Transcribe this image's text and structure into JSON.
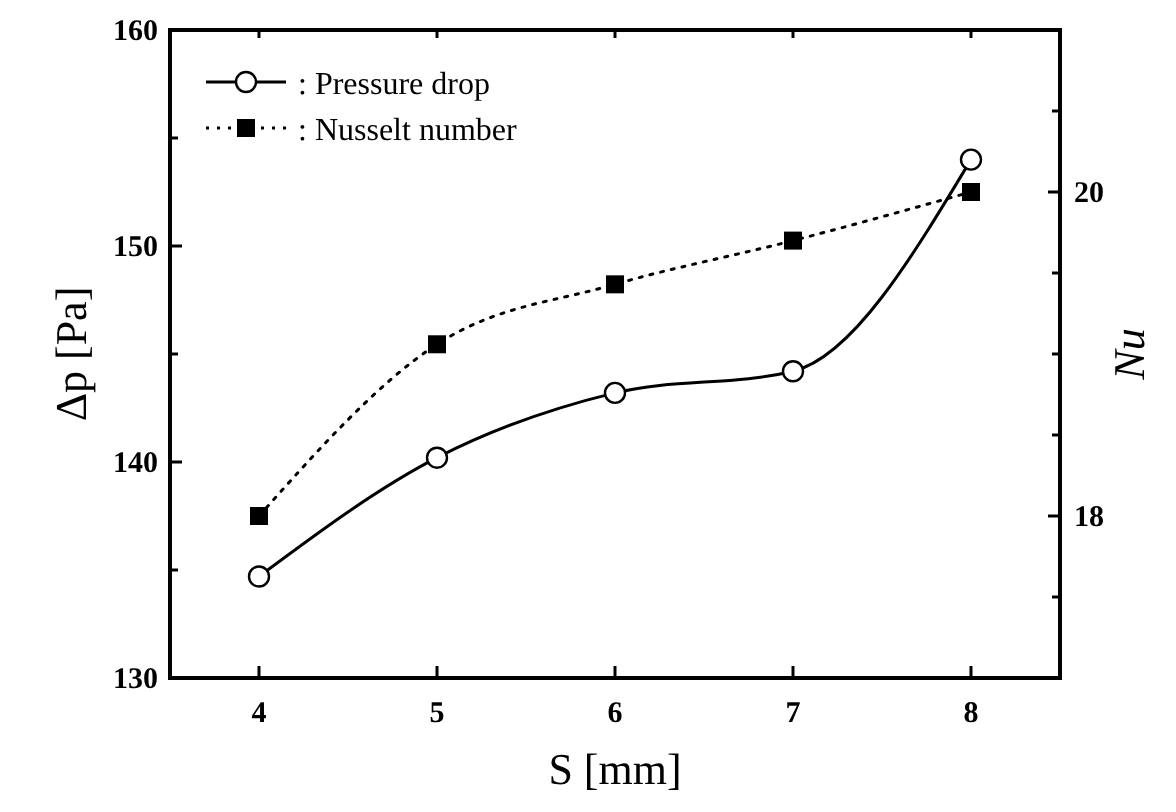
{
  "chart_data": {
    "type": "line",
    "x": [
      4,
      5,
      6,
      7,
      8
    ],
    "xlabel": "S  [mm]",
    "ylabel": "Δp [Pa]",
    "y2label": "Nu",
    "xlim": [
      3.5,
      8.5
    ],
    "xticks": [
      4,
      5,
      6,
      7,
      8
    ],
    "ylim": [
      130,
      160
    ],
    "yticks": [
      130,
      {
        "value": 135,
        "label": null
      },
      140,
      {
        "value": 145,
        "label": null
      },
      150,
      {
        "value": 155,
        "label": null
      },
      160
    ],
    "y2lim": [
      17,
      21
    ],
    "y2ticks": [
      {
        "value": 17.5,
        "label": null
      },
      18,
      {
        "value": 18.5,
        "label": null
      },
      {
        "value": 19,
        "label": null
      },
      {
        "value": 19.5,
        "label": null
      },
      20,
      {
        "value": 20.5,
        "label": null
      }
    ],
    "legend": "top left",
    "grid": false,
    "series": [
      {
        "name": ": Pressure drop",
        "color": "#000000",
        "marker": "circle",
        "line_style": "solid",
        "values": [
          134.7,
          140.2,
          143.2,
          144.2,
          154.0
        ]
      },
      {
        "name": ": Nusselt number",
        "color": "#000000",
        "marker": "square",
        "line_style": "dotted",
        "axis": "y2",
        "values": [
          18.0,
          19.06,
          19.43,
          19.7,
          20.0
        ]
      }
    ]
  }
}
